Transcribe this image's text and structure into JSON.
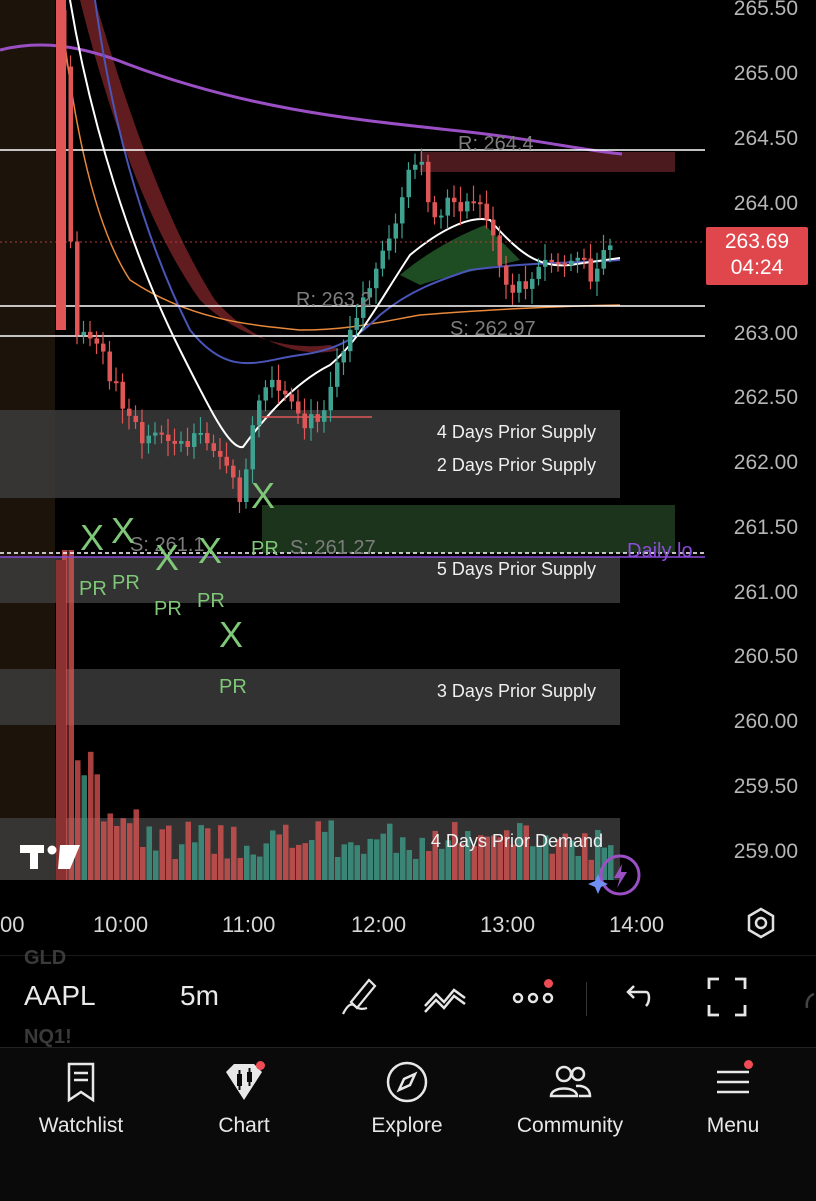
{
  "chart": {
    "price_labels": [
      "265.50",
      "265.00",
      "264.50",
      "264.00",
      "263.00",
      "262.50",
      "262.00",
      "261.50",
      "261.00",
      "260.50",
      "260.00",
      "259.50",
      "259.00"
    ],
    "time_labels": [
      "00",
      "10:00",
      "11:00",
      "12:00",
      "13:00",
      "14:00"
    ],
    "current_price": "263.69",
    "countdown": "04:24",
    "levels": {
      "r1": "R: 264.4",
      "r2": "R: 263.2",
      "s1": "S: 262.97",
      "s2": "S: 261.27",
      "s3": "S: 261.1",
      "daily_low": "Daily lo"
    },
    "zones": [
      {
        "label": "4 Days Prior Supply"
      },
      {
        "label": "2 Days Prior Supply"
      },
      {
        "label": "5 Days Prior Supply"
      },
      {
        "label": "3 Days Prior Supply"
      },
      {
        "label": "4 Days Prior Demand"
      }
    ],
    "markers": {
      "x": "X",
      "pr": "PR"
    },
    "colors": {
      "up": "#3fa18f",
      "down": "#e05656",
      "ema_band": "#6b1f22",
      "ema_green": "#1e4d24",
      "purple": "#9b4fc4",
      "orange": "#e8883a"
    }
  },
  "toolbar": {
    "ghost_above": "GLD",
    "ghost_below": "NQ1!",
    "symbol": "AAPL",
    "interval": "5m",
    "icons": [
      "draw-icon",
      "indicators-icon",
      "more-icon",
      "undo-icon",
      "fullscreen-icon"
    ]
  },
  "tabs": [
    {
      "label": "Watchlist",
      "icon": "bookmark-icon"
    },
    {
      "label": "Chart",
      "icon": "candles-icon"
    },
    {
      "label": "Explore",
      "icon": "compass-icon"
    },
    {
      "label": "Community",
      "icon": "people-icon"
    },
    {
      "label": "Menu",
      "icon": "hamburger-icon"
    }
  ]
}
